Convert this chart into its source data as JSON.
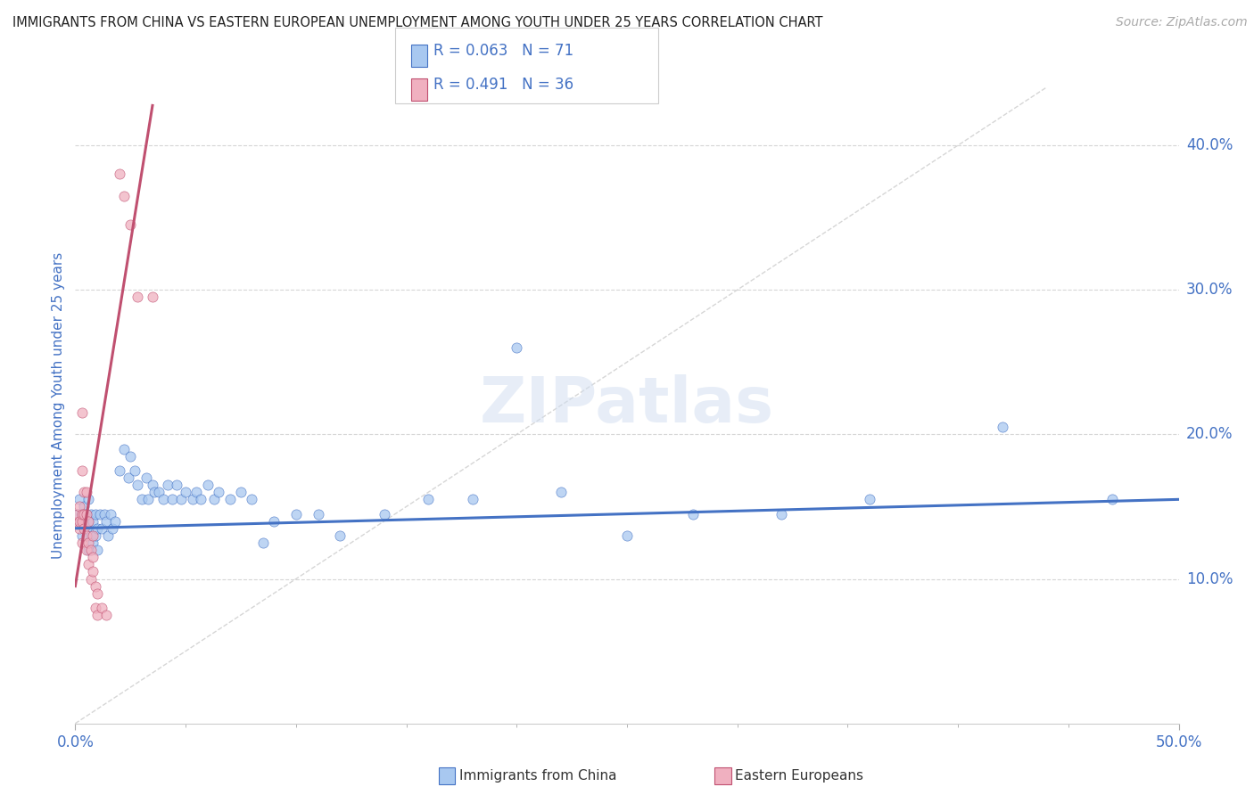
{
  "title": "IMMIGRANTS FROM CHINA VS EASTERN EUROPEAN UNEMPLOYMENT AMONG YOUTH UNDER 25 YEARS CORRELATION CHART",
  "source": "Source: ZipAtlas.com",
  "ylabel": "Unemployment Among Youth under 25 years",
  "xlim": [
    0,
    0.5
  ],
  "ylim": [
    0,
    0.44
  ],
  "R1": 0.063,
  "N1": 71,
  "R2": 0.491,
  "N2": 36,
  "color_blue": "#a8c8f0",
  "color_pink": "#f0b0c0",
  "line_blue": "#4472c4",
  "line_pink": "#c05070",
  "text_color": "#4472c4",
  "bg_color": "#ffffff",
  "watermark": "ZIPatlas",
  "blue_scatter": [
    [
      0.001,
      0.145
    ],
    [
      0.002,
      0.14
    ],
    [
      0.002,
      0.155
    ],
    [
      0.003,
      0.13
    ],
    [
      0.003,
      0.145
    ],
    [
      0.004,
      0.14
    ],
    [
      0.004,
      0.15
    ],
    [
      0.005,
      0.135
    ],
    [
      0.005,
      0.145
    ],
    [
      0.006,
      0.12
    ],
    [
      0.006,
      0.14
    ],
    [
      0.006,
      0.155
    ],
    [
      0.007,
      0.13
    ],
    [
      0.007,
      0.145
    ],
    [
      0.008,
      0.125
    ],
    [
      0.008,
      0.14
    ],
    [
      0.009,
      0.13
    ],
    [
      0.009,
      0.145
    ],
    [
      0.01,
      0.12
    ],
    [
      0.01,
      0.135
    ],
    [
      0.011,
      0.145
    ],
    [
      0.012,
      0.135
    ],
    [
      0.013,
      0.145
    ],
    [
      0.014,
      0.14
    ],
    [
      0.015,
      0.13
    ],
    [
      0.016,
      0.145
    ],
    [
      0.017,
      0.135
    ],
    [
      0.018,
      0.14
    ],
    [
      0.02,
      0.175
    ],
    [
      0.022,
      0.19
    ],
    [
      0.024,
      0.17
    ],
    [
      0.025,
      0.185
    ],
    [
      0.027,
      0.175
    ],
    [
      0.028,
      0.165
    ],
    [
      0.03,
      0.155
    ],
    [
      0.032,
      0.17
    ],
    [
      0.033,
      0.155
    ],
    [
      0.035,
      0.165
    ],
    [
      0.036,
      0.16
    ],
    [
      0.038,
      0.16
    ],
    [
      0.04,
      0.155
    ],
    [
      0.042,
      0.165
    ],
    [
      0.044,
      0.155
    ],
    [
      0.046,
      0.165
    ],
    [
      0.048,
      0.155
    ],
    [
      0.05,
      0.16
    ],
    [
      0.053,
      0.155
    ],
    [
      0.055,
      0.16
    ],
    [
      0.057,
      0.155
    ],
    [
      0.06,
      0.165
    ],
    [
      0.063,
      0.155
    ],
    [
      0.065,
      0.16
    ],
    [
      0.07,
      0.155
    ],
    [
      0.075,
      0.16
    ],
    [
      0.08,
      0.155
    ],
    [
      0.085,
      0.125
    ],
    [
      0.09,
      0.14
    ],
    [
      0.1,
      0.145
    ],
    [
      0.11,
      0.145
    ],
    [
      0.12,
      0.13
    ],
    [
      0.14,
      0.145
    ],
    [
      0.16,
      0.155
    ],
    [
      0.18,
      0.155
    ],
    [
      0.2,
      0.26
    ],
    [
      0.22,
      0.16
    ],
    [
      0.25,
      0.13
    ],
    [
      0.28,
      0.145
    ],
    [
      0.32,
      0.145
    ],
    [
      0.36,
      0.155
    ],
    [
      0.42,
      0.205
    ],
    [
      0.47,
      0.155
    ]
  ],
  "pink_scatter": [
    [
      0.001,
      0.14
    ],
    [
      0.001,
      0.145
    ],
    [
      0.002,
      0.135
    ],
    [
      0.002,
      0.14
    ],
    [
      0.002,
      0.15
    ],
    [
      0.003,
      0.125
    ],
    [
      0.003,
      0.14
    ],
    [
      0.003,
      0.145
    ],
    [
      0.003,
      0.175
    ],
    [
      0.003,
      0.215
    ],
    [
      0.004,
      0.135
    ],
    [
      0.004,
      0.145
    ],
    [
      0.004,
      0.16
    ],
    [
      0.005,
      0.12
    ],
    [
      0.005,
      0.13
    ],
    [
      0.005,
      0.145
    ],
    [
      0.005,
      0.16
    ],
    [
      0.006,
      0.11
    ],
    [
      0.006,
      0.125
    ],
    [
      0.006,
      0.14
    ],
    [
      0.007,
      0.1
    ],
    [
      0.007,
      0.12
    ],
    [
      0.008,
      0.105
    ],
    [
      0.008,
      0.115
    ],
    [
      0.008,
      0.13
    ],
    [
      0.009,
      0.08
    ],
    [
      0.009,
      0.095
    ],
    [
      0.01,
      0.075
    ],
    [
      0.01,
      0.09
    ],
    [
      0.012,
      0.08
    ],
    [
      0.014,
      0.075
    ],
    [
      0.02,
      0.38
    ],
    [
      0.022,
      0.365
    ],
    [
      0.025,
      0.345
    ],
    [
      0.028,
      0.295
    ],
    [
      0.035,
      0.295
    ]
  ],
  "pink_line_slope": 9.5,
  "pink_line_intercept": 0.095,
  "blue_line_slope": 0.04,
  "blue_line_intercept": 0.135
}
